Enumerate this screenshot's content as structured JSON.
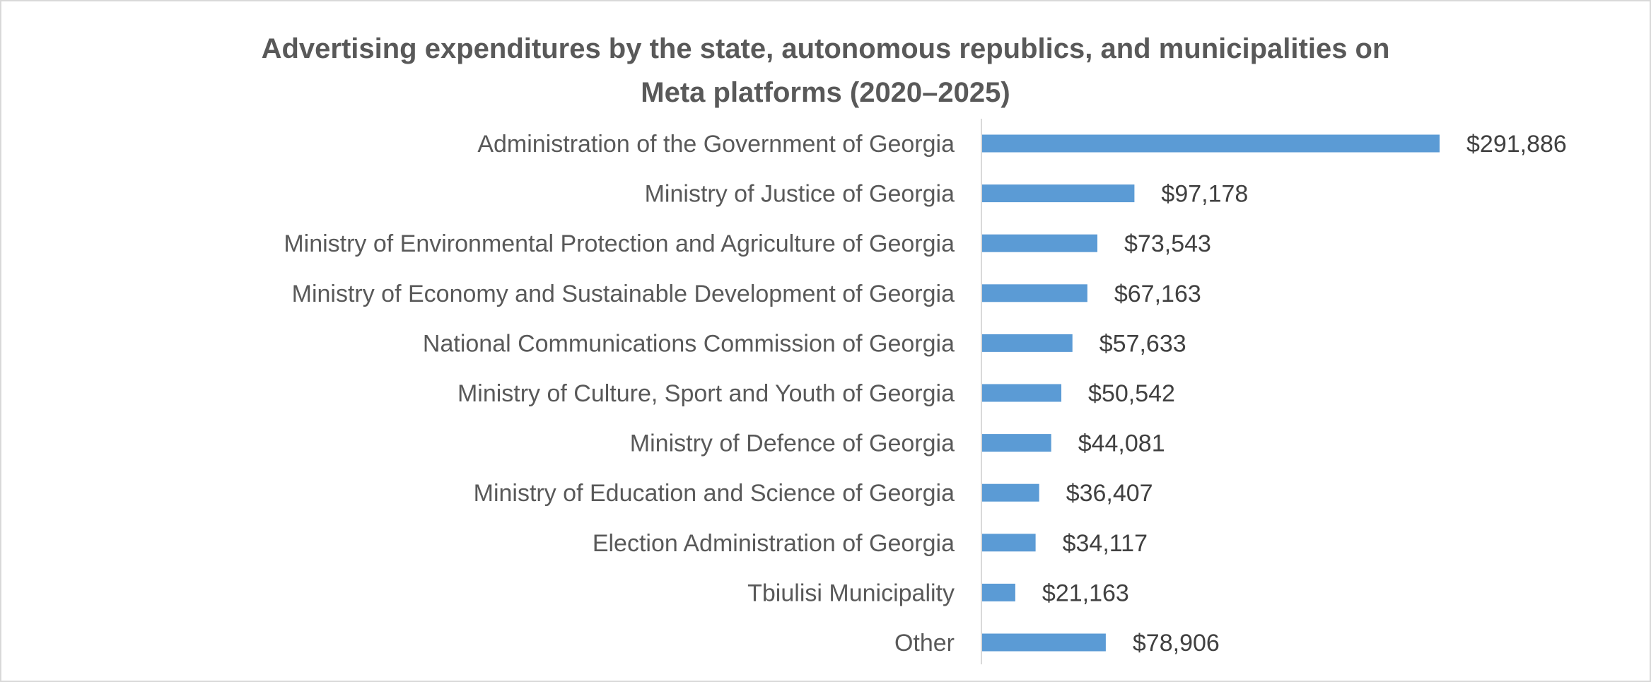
{
  "chart_data": {
    "type": "bar",
    "orientation": "horizontal",
    "title": "Advertising expenditures by the state, autonomous republics, and municipalities on",
    "title_line2": "Meta platforms (2020–2025)",
    "categories": [
      "Administration of the Government of Georgia",
      "Ministry of Justice of Georgia",
      "Ministry of Environmental Protection and Agriculture of Georgia",
      "Ministry of Economy and Sustainable Development of Georgia",
      "National Communications Commission of Georgia",
      "Ministry of Culture, Sport and Youth of Georgia",
      "Ministry of Defence of Georgia",
      "Ministry of Education and Science of Georgia",
      "Election Administration of Georgia",
      "Tbiulisi Municipality",
      "Other"
    ],
    "values": [
      291886,
      97178,
      73543,
      67163,
      57633,
      50542,
      44081,
      36407,
      34117,
      21163,
      78906
    ],
    "data_labels": [
      "$291,886",
      "$97,178",
      "$73,543",
      "$67,163",
      "$57,633",
      "$50,542",
      "$44,081",
      "$36,407",
      "$34,117",
      "$21,163",
      "$78,906"
    ],
    "xlim": [
      0,
      291886
    ],
    "grid": false,
    "legend": "none",
    "colors": {
      "bar": "#5b9bd5",
      "axis": "#d9d9d9",
      "text": "#595959",
      "label": "#404040"
    }
  }
}
